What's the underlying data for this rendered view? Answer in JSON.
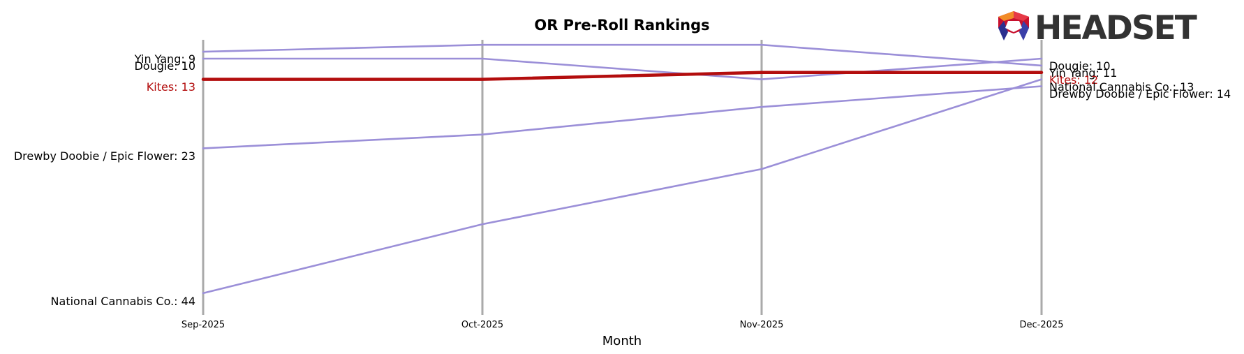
{
  "chart_data": {
    "type": "line",
    "title": "OR Pre-Roll Rankings",
    "xlabel": "Month",
    "ylabel": "",
    "x": [
      "Sep-2025",
      "Oct-2025",
      "Nov-2025",
      "Dec-2025"
    ],
    "ylim": [
      50,
      7
    ],
    "y_inverted": true,
    "grid": "vertical lines at each month",
    "series": [
      {
        "name": "Yin Yang",
        "values": [
          9,
          8,
          8,
          11
        ],
        "highlight": false
      },
      {
        "name": "Dougie",
        "values": [
          10,
          10,
          13,
          10
        ],
        "highlight": false
      },
      {
        "name": "Kites",
        "values": [
          13,
          13,
          12,
          12
        ],
        "highlight": true
      },
      {
        "name": "Drewby Doobie / Epic Flower",
        "values": [
          23,
          21,
          17,
          14
        ],
        "highlight": false
      },
      {
        "name": "National Cannabis Co.",
        "values": [
          44,
          34,
          26,
          13
        ],
        "highlight": false
      }
    ],
    "start_labels": [
      "Yin Yang: 9",
      "Dougie: 10",
      "Kites: 13",
      "Drewby Doobie / Epic Flower: 23",
      "National Cannabis Co.: 44"
    ],
    "end_labels": [
      "Dougie: 10",
      "Yin Yang: 11",
      "Kites: 12",
      "National Cannabis Co.: 13",
      "Drewby Doobie / Epic Flower: 14"
    ],
    "colors": {
      "series": "#9b8fd8",
      "highlight": "#b30d0d",
      "grid": "#aaaaaa"
    }
  },
  "brand": {
    "logo_text": "HEADSET"
  }
}
